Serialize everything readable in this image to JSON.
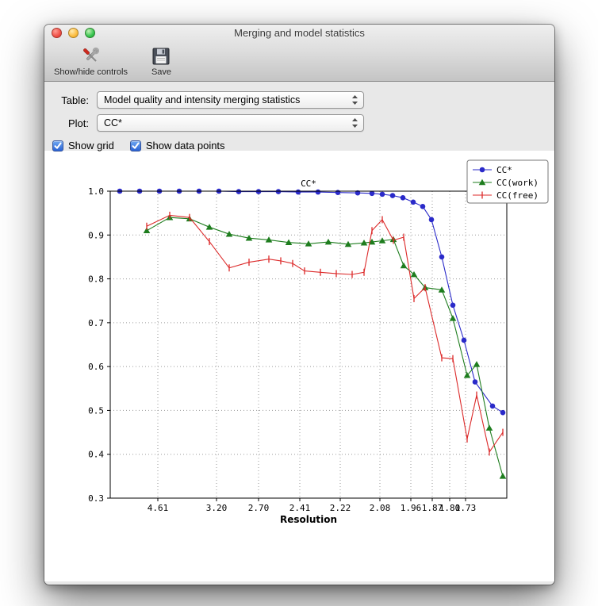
{
  "window": {
    "title": "Merging and model statistics"
  },
  "toolbar": {
    "items": [
      {
        "label": "Show/hide controls",
        "icon": "tools-icon"
      },
      {
        "label": "Save",
        "icon": "save-icon"
      }
    ]
  },
  "controls": {
    "table_label": "Table:",
    "table_value": "Model quality and intensity merging statistics",
    "plot_label": "Plot:",
    "plot_value": "CC*",
    "checkboxes": [
      {
        "label": "Show grid",
        "checked": true
      },
      {
        "label": "Show data points",
        "checked": true
      }
    ]
  },
  "chart_data": {
    "type": "line",
    "title": "CC*",
    "xlabel": "Resolution",
    "ylabel": "",
    "ylim": [
      0.3,
      1.0
    ],
    "grid": true,
    "show_data_points": true,
    "legend_position": "top-right",
    "yticks": [
      0.3,
      0.4,
      0.5,
      0.6,
      0.7,
      0.8,
      0.9,
      1.0
    ],
    "xticks": [
      {
        "pos": 0.12,
        "label": "4.61"
      },
      {
        "pos": 0.268,
        "label": "3.20"
      },
      {
        "pos": 0.374,
        "label": "2.70"
      },
      {
        "pos": 0.478,
        "label": "2.41"
      },
      {
        "pos": 0.58,
        "label": "2.22"
      },
      {
        "pos": 0.68,
        "label": "2.08"
      },
      {
        "pos": 0.758,
        "label": "1.96"
      },
      {
        "pos": 0.812,
        "label": "1.87"
      },
      {
        "pos": 0.856,
        "label": "1.80"
      },
      {
        "pos": 0.896,
        "label": "1.73"
      }
    ],
    "series": [
      {
        "name": "CC*",
        "color": "#2a2ac9",
        "marker": "circle",
        "points": [
          [
            0.024,
            1.0
          ],
          [
            0.074,
            1.0
          ],
          [
            0.124,
            1.0
          ],
          [
            0.174,
            1.0
          ],
          [
            0.224,
            1.0
          ],
          [
            0.274,
            1.0
          ],
          [
            0.324,
            0.999
          ],
          [
            0.374,
            0.999
          ],
          [
            0.424,
            0.999
          ],
          [
            0.474,
            0.998
          ],
          [
            0.524,
            0.998
          ],
          [
            0.574,
            0.997
          ],
          [
            0.624,
            0.996
          ],
          [
            0.66,
            0.995
          ],
          [
            0.686,
            0.993
          ],
          [
            0.712,
            0.99
          ],
          [
            0.738,
            0.985
          ],
          [
            0.764,
            0.975
          ],
          [
            0.788,
            0.965
          ],
          [
            0.81,
            0.935
          ],
          [
            0.836,
            0.85
          ],
          [
            0.864,
            0.74
          ],
          [
            0.892,
            0.66
          ],
          [
            0.92,
            0.565
          ],
          [
            0.964,
            0.51
          ],
          [
            0.99,
            0.495
          ]
        ]
      },
      {
        "name": "CC(work)",
        "color": "#1e7d1e",
        "marker": "triangle",
        "points": [
          [
            0.092,
            0.91
          ],
          [
            0.15,
            0.94
          ],
          [
            0.2,
            0.937
          ],
          [
            0.25,
            0.918
          ],
          [
            0.3,
            0.902
          ],
          [
            0.35,
            0.893
          ],
          [
            0.4,
            0.889
          ],
          [
            0.45,
            0.883
          ],
          [
            0.5,
            0.88
          ],
          [
            0.55,
            0.884
          ],
          [
            0.6,
            0.879
          ],
          [
            0.64,
            0.882
          ],
          [
            0.66,
            0.884
          ],
          [
            0.686,
            0.887
          ],
          [
            0.714,
            0.89
          ],
          [
            0.74,
            0.83
          ],
          [
            0.766,
            0.81
          ],
          [
            0.794,
            0.78
          ],
          [
            0.836,
            0.775
          ],
          [
            0.864,
            0.71
          ],
          [
            0.9,
            0.58
          ],
          [
            0.924,
            0.605
          ],
          [
            0.956,
            0.46
          ],
          [
            0.99,
            0.35
          ]
        ]
      },
      {
        "name": "CC(free)",
        "color": "#dc2a2a",
        "marker": "vtick",
        "points": [
          [
            0.092,
            0.92
          ],
          [
            0.15,
            0.945
          ],
          [
            0.2,
            0.94
          ],
          [
            0.25,
            0.885
          ],
          [
            0.3,
            0.825
          ],
          [
            0.35,
            0.838
          ],
          [
            0.4,
            0.845
          ],
          [
            0.43,
            0.841
          ],
          [
            0.46,
            0.835
          ],
          [
            0.49,
            0.818
          ],
          [
            0.53,
            0.815
          ],
          [
            0.57,
            0.812
          ],
          [
            0.61,
            0.81
          ],
          [
            0.64,
            0.815
          ],
          [
            0.66,
            0.91
          ],
          [
            0.686,
            0.935
          ],
          [
            0.714,
            0.888
          ],
          [
            0.74,
            0.895
          ],
          [
            0.766,
            0.755
          ],
          [
            0.794,
            0.78
          ],
          [
            0.836,
            0.62
          ],
          [
            0.864,
            0.618
          ],
          [
            0.9,
            0.435
          ],
          [
            0.924,
            0.535
          ],
          [
            0.956,
            0.405
          ],
          [
            0.99,
            0.45
          ]
        ]
      }
    ]
  }
}
